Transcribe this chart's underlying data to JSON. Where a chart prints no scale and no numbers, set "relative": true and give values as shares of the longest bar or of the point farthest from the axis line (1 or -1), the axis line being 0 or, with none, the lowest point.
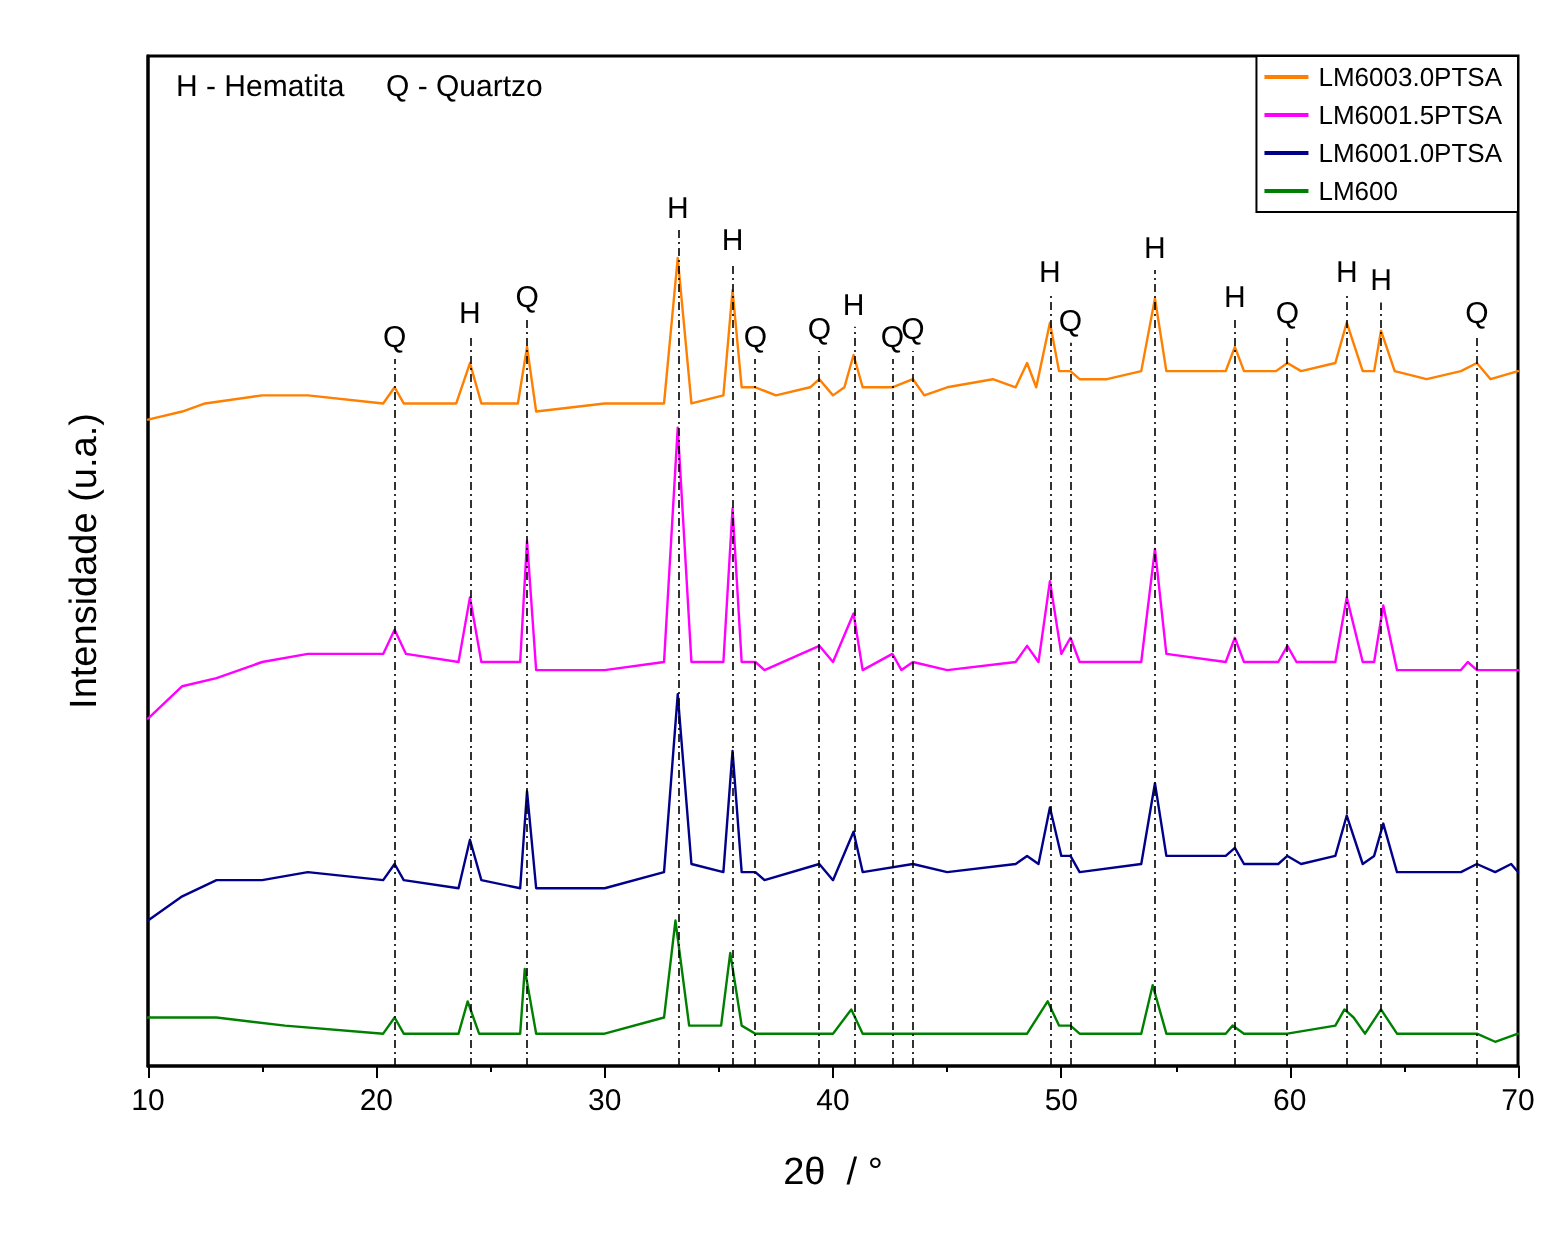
{
  "chart_data": {
    "type": "line",
    "relative": true,
    "xlabel": "2θ  / °",
    "ylabel": "Intensidade (u.a.)",
    "xlim": [
      10,
      70
    ],
    "xticks": [
      10,
      20,
      30,
      40,
      50,
      60,
      70
    ],
    "grid": false,
    "legend": "top right",
    "marker": "none",
    "line_style": "solid",
    "series": [
      {
        "name": "LM6003.0PTSA",
        "color": "#ff7f00",
        "x": [
          10,
          11.5,
          12.5,
          15,
          17,
          20.3,
          20.8,
          21.2,
          23.5,
          24.1,
          24.6,
          26.2,
          26.6,
          27,
          30,
          32.6,
          33.2,
          33.8,
          35.2,
          35.6,
          36,
          36.6,
          37.5,
          39,
          39.4,
          40,
          40.5,
          40.9,
          41.3,
          42.6,
          43.5,
          44,
          45,
          47,
          48,
          48.5,
          48.9,
          49.5,
          49.9,
          50.4,
          50.8,
          52,
          53.5,
          54.1,
          54.6,
          56,
          57.2,
          57.6,
          58,
          59.4,
          59.9,
          60.5,
          62,
          62.5,
          63.2,
          63.7,
          64,
          64.6,
          66,
          67.5,
          68.2,
          68.8,
          70
        ],
        "values": [
          0.8,
          0.81,
          0.82,
          0.83,
          0.83,
          0.82,
          0.84,
          0.82,
          0.82,
          0.87,
          0.82,
          0.82,
          0.89,
          0.81,
          0.82,
          0.82,
          1.0,
          0.82,
          0.83,
          0.96,
          0.84,
          0.84,
          0.83,
          0.84,
          0.85,
          0.83,
          0.84,
          0.88,
          0.84,
          0.84,
          0.85,
          0.83,
          0.84,
          0.85,
          0.84,
          0.87,
          0.84,
          0.92,
          0.86,
          0.86,
          0.85,
          0.85,
          0.86,
          0.95,
          0.86,
          0.86,
          0.86,
          0.89,
          0.86,
          0.86,
          0.87,
          0.86,
          0.87,
          0.92,
          0.86,
          0.86,
          0.91,
          0.86,
          0.85,
          0.86,
          0.87,
          0.85,
          0.86
        ]
      },
      {
        "name": "LM6001.5PTSA",
        "color": "#ff00ff",
        "x": [
          10,
          11.5,
          13,
          15,
          17,
          20.3,
          20.8,
          21.3,
          23.6,
          24.1,
          24.6,
          26.3,
          26.6,
          27,
          30,
          32.6,
          33.2,
          33.8,
          35.2,
          35.6,
          36,
          36.6,
          37,
          39.4,
          40,
          40.9,
          41.3,
          42.6,
          43,
          43.5,
          45,
          48,
          48.5,
          49,
          49.5,
          50,
          50.4,
          50.8,
          53.5,
          54.1,
          54.6,
          57.2,
          57.6,
          58,
          59.5,
          59.9,
          60.3,
          62,
          62.5,
          63.2,
          63.7,
          64.1,
          64.7,
          67.5,
          67.8,
          68.2,
          69.3,
          70
        ],
        "values": [
          0.43,
          0.47,
          0.48,
          0.5,
          0.51,
          0.51,
          0.54,
          0.51,
          0.5,
          0.58,
          0.5,
          0.5,
          0.65,
          0.49,
          0.49,
          0.5,
          0.79,
          0.5,
          0.5,
          0.69,
          0.5,
          0.5,
          0.49,
          0.52,
          0.5,
          0.56,
          0.49,
          0.51,
          0.49,
          0.5,
          0.49,
          0.5,
          0.52,
          0.5,
          0.6,
          0.51,
          0.53,
          0.5,
          0.5,
          0.64,
          0.51,
          0.5,
          0.53,
          0.5,
          0.5,
          0.52,
          0.5,
          0.5,
          0.58,
          0.5,
          0.5,
          0.57,
          0.49,
          0.49,
          0.5,
          0.49,
          0.49,
          0.49
        ]
      },
      {
        "name": "LM6001.0PTSA",
        "color": "#00008b",
        "x": [
          10,
          11.5,
          13,
          15,
          17,
          20.3,
          20.8,
          21.2,
          23.6,
          24.1,
          24.6,
          26.3,
          26.6,
          27,
          30,
          32.6,
          33.2,
          33.8,
          35.2,
          35.6,
          36,
          36.6,
          37,
          39.4,
          40,
          40.9,
          41.3,
          43.5,
          45,
          48,
          48.5,
          49,
          49.5,
          50,
          50.4,
          50.8,
          53.5,
          54.1,
          54.6,
          57.2,
          57.6,
          58,
          59.5,
          59.9,
          60.5,
          62,
          62.5,
          63.2,
          63.7,
          64.1,
          64.7,
          67.5,
          68.2,
          69,
          69.7,
          70
        ],
        "values": [
          0.18,
          0.21,
          0.23,
          0.23,
          0.24,
          0.23,
          0.25,
          0.23,
          0.22,
          0.28,
          0.23,
          0.22,
          0.34,
          0.22,
          0.22,
          0.24,
          0.46,
          0.25,
          0.24,
          0.39,
          0.24,
          0.24,
          0.23,
          0.25,
          0.23,
          0.29,
          0.24,
          0.25,
          0.24,
          0.25,
          0.26,
          0.25,
          0.32,
          0.26,
          0.26,
          0.24,
          0.25,
          0.35,
          0.26,
          0.26,
          0.27,
          0.25,
          0.25,
          0.26,
          0.25,
          0.26,
          0.31,
          0.25,
          0.26,
          0.3,
          0.24,
          0.24,
          0.25,
          0.24,
          0.25,
          0.24
        ]
      },
      {
        "name": "LM600",
        "color": "#008000",
        "x": [
          10,
          13,
          16,
          20.3,
          20.8,
          21.2,
          23.6,
          24,
          24.5,
          26.3,
          26.5,
          27,
          30,
          32.6,
          33.1,
          33.7,
          35.1,
          35.5,
          36,
          36.6,
          39,
          39.4,
          40,
          40.8,
          41.3,
          45,
          48.5,
          49.4,
          49.9,
          50.4,
          50.8,
          53.5,
          54,
          54.6,
          57.2,
          57.5,
          58,
          59.9,
          62,
          62.4,
          62.8,
          63.3,
          64,
          64.7,
          67.5,
          68.2,
          69,
          70
        ],
        "values": [
          0.06,
          0.06,
          0.05,
          0.04,
          0.06,
          0.04,
          0.04,
          0.08,
          0.04,
          0.04,
          0.12,
          0.04,
          0.04,
          0.06,
          0.18,
          0.05,
          0.05,
          0.14,
          0.05,
          0.04,
          0.04,
          0.04,
          0.04,
          0.07,
          0.04,
          0.04,
          0.04,
          0.08,
          0.05,
          0.05,
          0.04,
          0.04,
          0.1,
          0.04,
          0.04,
          0.05,
          0.04,
          0.04,
          0.05,
          0.07,
          0.06,
          0.04,
          0.07,
          0.04,
          0.04,
          0.04,
          0.03,
          0.04
        ]
      }
    ],
    "ref_lines": [
      {
        "axis": "x",
        "value": 20.8,
        "line_style": "dashed",
        "label": "Q"
      },
      {
        "axis": "x",
        "value": 24.1,
        "line_style": "dashed",
        "label": "H"
      },
      {
        "axis": "x",
        "value": 26.6,
        "line_style": "dashed",
        "label": "Q"
      },
      {
        "axis": "x",
        "value": 33.2,
        "line_style": "dashed",
        "label": "H"
      },
      {
        "axis": "x",
        "value": 35.6,
        "line_style": "dashed",
        "label": "H"
      },
      {
        "axis": "x",
        "value": 36.6,
        "line_style": "dashed",
        "label": "Q"
      },
      {
        "axis": "x",
        "value": 39.4,
        "line_style": "dashed",
        "label": "Q"
      },
      {
        "axis": "x",
        "value": 40.9,
        "line_style": "dashed",
        "label": "H"
      },
      {
        "axis": "x",
        "value": 42.6,
        "line_style": "dashed",
        "label": "Q"
      },
      {
        "axis": "x",
        "value": 43.5,
        "line_style": "dashed",
        "label": "Q"
      },
      {
        "axis": "x",
        "value": 49.5,
        "line_style": "dashed",
        "label": "H"
      },
      {
        "axis": "x",
        "value": 50.4,
        "line_style": "dashed",
        "label": "Q"
      },
      {
        "axis": "x",
        "value": 54.1,
        "line_style": "dashed",
        "label": "H"
      },
      {
        "axis": "x",
        "value": 57.6,
        "line_style": "dashed",
        "label": "H"
      },
      {
        "axis": "x",
        "value": 59.9,
        "line_style": "dashed",
        "label": "Q"
      },
      {
        "axis": "x",
        "value": 62.5,
        "line_style": "dashed",
        "label": "H"
      },
      {
        "axis": "x",
        "value": 64,
        "line_style": "dashed",
        "label": "H"
      },
      {
        "axis": "x",
        "value": 68.2,
        "line_style": "dashed",
        "label": "Q"
      }
    ],
    "annotations": [
      "H - Hematita     Q - Quartzo"
    ]
  }
}
